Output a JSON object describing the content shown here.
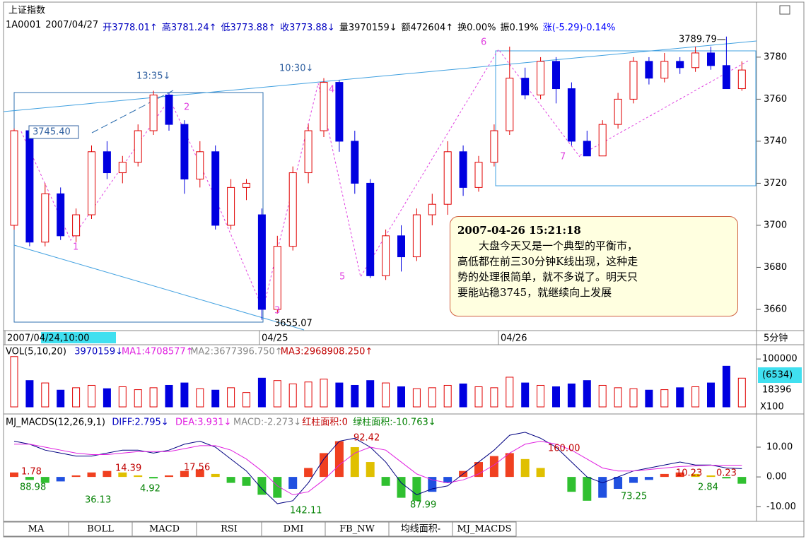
{
  "header": {
    "title": "上证指数",
    "info": [
      "1A0001",
      "2007/04/27",
      "开3778.01↑",
      "高3781.24↑",
      "低3773.88↑",
      "收3773.88↓",
      "量3970159↓",
      "额472604↑",
      "换0.00%",
      "振0.19%",
      "涨(-5.29)-0.14%"
    ]
  },
  "chart_data": [
    {
      "type": "candlestick",
      "open": [
        3700,
        3745,
        3692,
        3715,
        3695,
        3705,
        3735,
        3725,
        3730,
        3745,
        3762,
        3748,
        3722,
        3735,
        3700,
        3718,
        3705,
        3660,
        3690,
        3725,
        3745,
        3768,
        3740,
        3720,
        3676,
        3695,
        3685,
        3705,
        3710,
        3735,
        3718,
        3730,
        3745,
        3770,
        3762,
        3778,
        3765,
        3740,
        3733,
        3748,
        3760,
        3778,
        3770,
        3778,
        3775,
        3782,
        3776,
        3765
      ],
      "high": [
        3746,
        3746,
        3720,
        3718,
        3708,
        3738,
        3740,
        3733,
        3748,
        3764,
        3763,
        3750,
        3740,
        3738,
        3722,
        3722,
        3708,
        3695,
        3728,
        3748,
        3770,
        3769,
        3745,
        3722,
        3698,
        3700,
        3708,
        3715,
        3740,
        3738,
        3733,
        3748,
        3785,
        3775,
        3780,
        3780,
        3768,
        3745,
        3750,
        3763,
        3780,
        3780,
        3782,
        3780,
        3785,
        3785,
        3789.79,
        3778
      ],
      "low": [
        3698,
        3690,
        3690,
        3693,
        3692,
        3703,
        3722,
        3720,
        3728,
        3743,
        3745,
        3715,
        3718,
        3698,
        3698,
        3712,
        3655.07,
        3658,
        3688,
        3720,
        3742,
        3735,
        3715,
        3675,
        3674,
        3678,
        3683,
        3700,
        3705,
        3714,
        3716,
        3728,
        3743,
        3760,
        3760,
        3758,
        3738,
        3733,
        3733,
        3746,
        3758,
        3767,
        3768,
        3772,
        3773,
        3774,
        3765,
        3764
      ],
      "close": [
        3745,
        3692,
        3715,
        3695,
        3705,
        3735,
        3725,
        3730,
        3745,
        3762,
        3748,
        3722,
        3735,
        3700,
        3718,
        3720,
        3660,
        3690,
        3725,
        3745,
        3768,
        3740,
        3720,
        3676,
        3695,
        3685,
        3705,
        3710,
        3735,
        3718,
        3730,
        3745,
        3770,
        3762,
        3778,
        3765,
        3740,
        3733,
        3748,
        3760,
        3778,
        3770,
        3778,
        3775,
        3782,
        3776,
        3765,
        3773.88
      ],
      "ylim": [
        3649.9,
        3804.5
      ],
      "yticks": [
        3660,
        3680,
        3700,
        3720,
        3740,
        3760,
        3780
      ],
      "x_labels": [
        "2007/04/24,10:00",
        "04/25",
        "04/26"
      ],
      "period": "5分钟",
      "annotations": [
        "13:35↓",
        "10:30↓",
        "3745.40",
        "3789.79—",
        "3655.07",
        "1",
        "2",
        "3",
        "4",
        "5",
        "6",
        "7"
      ]
    },
    {
      "type": "bar",
      "legend": [
        "VOL(5,10,20)",
        "3970159↓",
        "MA1:4708577↑",
        "MA2:3677396.750↑",
        "MA3:2968908.250↑"
      ],
      "values": [
        105000,
        55000,
        50000,
        35000,
        40000,
        45000,
        38000,
        42000,
        36000,
        40000,
        45000,
        50000,
        38000,
        35000,
        40000,
        30000,
        60000,
        55000,
        48000,
        52000,
        58000,
        50000,
        45000,
        55000,
        50000,
        42000,
        38000,
        40000,
        45000,
        48000,
        42000,
        40000,
        62000,
        50000,
        45000,
        42000,
        48000,
        55000,
        45000,
        40000,
        38000,
        35000,
        36000,
        40000,
        42000,
        50000,
        85000,
        60000
      ],
      "ylim": [
        0,
        115000
      ],
      "yticks": [
        100000
      ],
      "side_labels": [
        "(6534)",
        "18396",
        "X100"
      ]
    },
    {
      "type": "bar",
      "legend": [
        "MJ_MACDS(12,26,9,1)",
        "DIFF:2.795↓",
        "DEA:3.931↓",
        "MACD:-2.273↓",
        "红柱面积:0",
        "绿柱面积:-10.763↓"
      ],
      "values": [
        1.5,
        -1,
        -2,
        -1.5,
        0.5,
        1.5,
        2,
        1.5,
        0.5,
        -0.5,
        0.5,
        2,
        2.5,
        1,
        -2,
        -3,
        -6,
        -7,
        -4,
        3,
        8,
        12,
        10,
        5,
        -3,
        -7,
        -8,
        -5,
        -2,
        2,
        5,
        7,
        8,
        6,
        3,
        0,
        -5,
        -8,
        -7,
        -4,
        -2,
        -1,
        1,
        1.5,
        1,
        0.5,
        -0.5,
        -2.273
      ],
      "lines": [
        {
          "color": "#000080",
          "values": [
            12,
            11,
            9,
            8,
            7,
            7,
            8,
            9,
            9,
            8,
            9,
            11,
            12,
            10,
            6,
            2,
            -4,
            -9,
            -8,
            -2,
            6,
            12,
            13,
            10,
            5,
            -2,
            -6,
            -4,
            -3,
            1,
            5,
            9,
            14,
            15,
            13,
            10,
            5,
            0,
            -2,
            0,
            2,
            3,
            4,
            5,
            4,
            4,
            3,
            2.795
          ]
        },
        {
          "color": "#e020e0",
          "values": [
            11,
            11,
            10,
            9,
            8,
            7.5,
            7.5,
            8,
            8.5,
            8.5,
            8.5,
            9.5,
            10.5,
            10.5,
            9,
            6,
            2,
            -3,
            -6,
            -5,
            -1,
            4,
            8,
            10,
            9,
            5,
            1,
            -1,
            -2,
            -1,
            1,
            4,
            8,
            11,
            12,
            11,
            9,
            6,
            3,
            2,
            2,
            2.5,
            3,
            3.5,
            3.7,
            3.9,
            3.9,
            3.931
          ]
        }
      ],
      "ylim": [
        -13.5,
        20.2
      ],
      "yticks": [
        {
          "value": 10,
          "label": "10.00"
        },
        {
          "value": 0,
          "label": "0.00"
        },
        {
          "value": -10,
          "label": "-10.00"
        }
      ],
      "annotations": [
        "1.78",
        "88.98",
        "36.13",
        "14.39",
        "4.92",
        "17.56",
        "142.11",
        "92.42",
        "87.99",
        "160.00",
        "73.25",
        "10.23",
        "0.23",
        "2.84"
      ]
    }
  ],
  "note": {
    "title": "2007-04-26 15:21:18",
    "lines": [
      "大盘今天又是一个典型的平衡市，",
      "高低都在前三30分钟K线出现，这种走",
      "势的处理很简单，就不多说了。明天只",
      "要能站稳3745，就继续向上发展"
    ]
  },
  "tabs": [
    "MA",
    "BOLL",
    "MACD",
    "RSI",
    "DMI",
    "FB_NW",
    "均线面积-",
    "MJ_MACDS"
  ]
}
